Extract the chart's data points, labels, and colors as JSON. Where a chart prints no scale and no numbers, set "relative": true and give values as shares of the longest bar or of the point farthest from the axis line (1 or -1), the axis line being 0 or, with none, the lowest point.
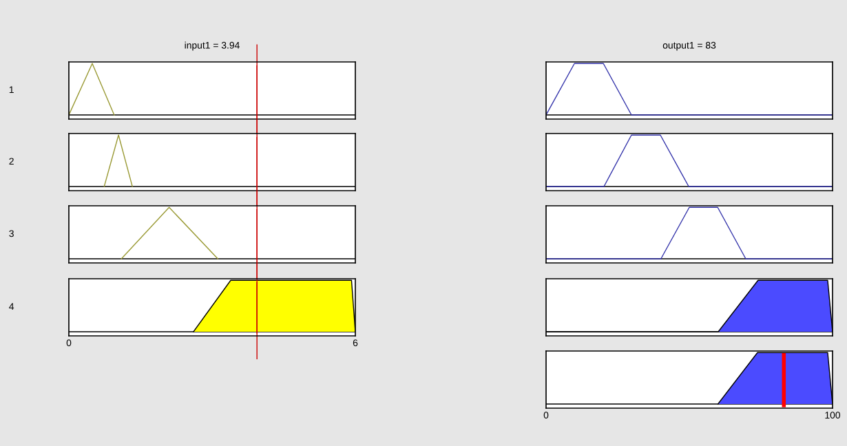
{
  "chart_data": [
    {
      "type": "line",
      "title": "input1 = 3.94",
      "ylabel": "1",
      "relative": true,
      "xlim": [
        0,
        6
      ],
      "tick_labels": false,
      "x": [
        0,
        0.49,
        0.95
      ],
      "series": [
        {
          "color": "#999933",
          "values": [
            0,
            1,
            0
          ]
        }
      ],
      "ref_lines": [
        {
          "axis": "x",
          "value": 3.94,
          "color": "#cc0000"
        }
      ]
    },
    {
      "type": "line",
      "ylabel": "2",
      "relative": true,
      "xlim": [
        0,
        6
      ],
      "tick_labels": false,
      "x": [
        0.74,
        1.04,
        1.33
      ],
      "series": [
        {
          "color": "#999933",
          "values": [
            0,
            1,
            0
          ]
        }
      ],
      "ref_lines": [
        {
          "axis": "x",
          "value": 3.94,
          "color": "#cc0000"
        }
      ]
    },
    {
      "type": "line",
      "ylabel": "3",
      "relative": true,
      "xlim": [
        0,
        6
      ],
      "tick_labels": false,
      "x": [
        1.1,
        2.1,
        3.12
      ],
      "series": [
        {
          "color": "#999933",
          "values": [
            0,
            1,
            0
          ]
        }
      ],
      "ref_lines": [
        {
          "axis": "x",
          "value": 3.94,
          "color": "#cc0000"
        }
      ]
    },
    {
      "type": "area",
      "ylabel": "4",
      "relative": true,
      "xlim": [
        0,
        6
      ],
      "xticks": [
        0,
        6
      ],
      "tick_labels": "x",
      "x": [
        2.61,
        3.39,
        5.92,
        6
      ],
      "series": [
        {
          "color": "#ffff00",
          "values": [
            0,
            1,
            1,
            0
          ]
        }
      ],
      "ref_lines": [
        {
          "axis": "x",
          "value": 3.94,
          "color": "#cc0000"
        }
      ]
    },
    {
      "type": "line",
      "title": "output1 = 83",
      "relative": true,
      "xlim": [
        0,
        100
      ],
      "tick_labels": false,
      "x": [
        0,
        9.9,
        20,
        29.8,
        100
      ],
      "series": [
        {
          "color": "#3333aa",
          "values": [
            0,
            1,
            1,
            0,
            0
          ]
        }
      ]
    },
    {
      "type": "line",
      "relative": true,
      "xlim": [
        0,
        100
      ],
      "tick_labels": false,
      "x": [
        0,
        20.2,
        29.8,
        39.9,
        49.8,
        100
      ],
      "series": [
        {
          "color": "#3333aa",
          "values": [
            0,
            0,
            1,
            1,
            0,
            0
          ]
        }
      ]
    },
    {
      "type": "line",
      "relative": true,
      "xlim": [
        0,
        100
      ],
      "tick_labels": false,
      "x": [
        0,
        40.1,
        50,
        59.9,
        69.7,
        100
      ],
      "series": [
        {
          "color": "#3333aa",
          "values": [
            0,
            0,
            1,
            1,
            0,
            0
          ]
        }
      ]
    },
    {
      "type": "area",
      "relative": true,
      "xlim": [
        0,
        100
      ],
      "tick_labels": false,
      "x": [
        0,
        60.1,
        74,
        98.3,
        100
      ],
      "series": [
        {
          "color": "#4b4bff",
          "values": [
            0,
            0,
            1,
            1,
            0
          ]
        }
      ]
    },
    {
      "type": "area",
      "relative": true,
      "xlim": [
        0,
        100
      ],
      "xticks": [
        0,
        100
      ],
      "tick_labels": "x",
      "x": [
        60,
        73.8,
        98.3,
        100
      ],
      "series": [
        {
          "color": "#4b4bff",
          "values": [
            0,
            1,
            1,
            0
          ]
        }
      ],
      "ref_lines": [
        {
          "axis": "x",
          "value": 83,
          "color": "#ff0000"
        }
      ]
    }
  ]
}
